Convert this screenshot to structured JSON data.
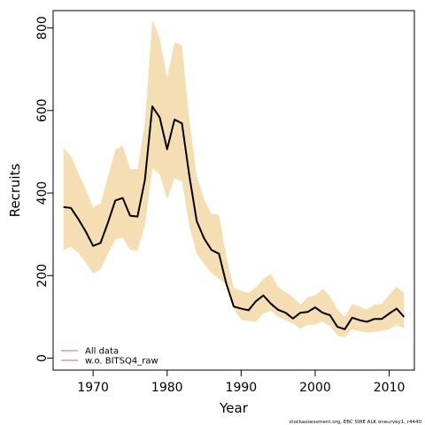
{
  "chart_data": {
    "type": "line",
    "xlabel": "Year",
    "ylabel": "Recruits",
    "xlim": [
      1964.6,
      2013.4
    ],
    "ylim": [
      -29,
      842
    ],
    "xticks": [
      1970,
      1980,
      1990,
      2000,
      2010
    ],
    "yticks": [
      0,
      200,
      400,
      600,
      800
    ],
    "grid": false,
    "legend_position": "bottom-left",
    "x": [
      1966,
      1967,
      1968,
      1969,
      1970,
      1971,
      1972,
      1973,
      1974,
      1975,
      1976,
      1977,
      1978,
      1979,
      1980,
      1981,
      1982,
      1983,
      1984,
      1985,
      1986,
      1987,
      1988,
      1989,
      1990,
      1991,
      1992,
      1993,
      1994,
      1995,
      1996,
      1997,
      1998,
      1999,
      2000,
      2001,
      2002,
      2003,
      2004,
      2005,
      2006,
      2007,
      2008,
      2009,
      2010,
      2011,
      2012
    ],
    "band": {
      "color": "#F5DEB3",
      "lower": [
        262,
        270,
        255,
        232,
        205,
        215,
        252,
        288,
        292,
        262,
        260,
        322,
        460,
        445,
        385,
        436,
        428,
        320,
        252,
        228,
        206,
        192,
        178,
        120,
        92,
        90,
        88,
        108,
        115,
        100,
        92,
        84,
        72,
        80,
        82,
        88,
        78,
        55,
        50,
        70,
        65,
        62,
        64,
        66,
        70,
        80,
        72
      ],
      "upper": [
        510,
        490,
        448,
        410,
        365,
        375,
        440,
        505,
        515,
        458,
        458,
        570,
        820,
        775,
        680,
        765,
        758,
        578,
        442,
        385,
        350,
        348,
        246,
        170,
        163,
        158,
        172,
        192,
        204,
        172,
        160,
        148,
        130,
        148,
        152,
        168,
        150,
        118,
        100,
        132,
        125,
        118,
        130,
        132,
        154,
        173,
        158
      ]
    },
    "series": [
      {
        "name": "All data",
        "color": "#E8837B",
        "values": [
          366,
          364,
          337,
          307,
          272,
          279,
          328,
          382,
          388,
          345,
          343,
          432,
          610,
          583,
          506,
          578,
          569,
          442,
          332,
          290,
          262,
          253,
          180,
          125,
          120,
          116,
          138,
          152,
          132,
          117,
          110,
          96,
          110,
          112,
          123,
          110,
          104,
          76,
          70,
          98,
          92,
          88,
          95,
          95,
          108,
          120,
          100
        ]
      },
      {
        "name": "w.o. BITSQ4_raw",
        "color": "#B97FD6",
        "values": [
          366,
          364,
          337,
          307,
          272,
          279,
          328,
          382,
          388,
          345,
          343,
          432,
          610,
          583,
          506,
          578,
          569,
          442,
          332,
          290,
          262,
          253,
          180,
          125,
          120,
          116,
          138,
          152,
          132,
          117,
          110,
          96,
          110,
          112,
          123,
          110,
          104,
          76,
          70,
          98,
          92,
          88,
          95,
          95,
          108,
          120,
          100
        ]
      },
      {
        "name": "",
        "color": "#000000",
        "values": [
          366,
          364,
          337,
          307,
          272,
          279,
          328,
          382,
          388,
          345,
          343,
          432,
          610,
          583,
          506,
          578,
          569,
          442,
          332,
          290,
          262,
          253,
          180,
          125,
          120,
          116,
          138,
          152,
          132,
          117,
          110,
          96,
          110,
          112,
          123,
          110,
          104,
          76,
          70,
          98,
          92,
          88,
          95,
          95,
          108,
          120,
          100
        ]
      }
    ],
    "footnote": "stockassessment.org, EBC SWE ALK oneurvey1, r4440"
  }
}
